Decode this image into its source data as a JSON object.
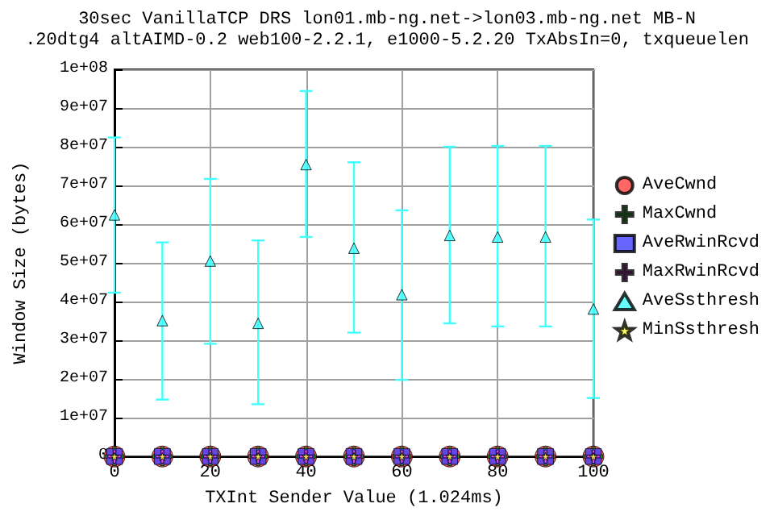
{
  "chart_data": {
    "type": "scatter",
    "title": "30sec VanillaTCP DRS lon01.mb-ng.net->lon03.mb-ng.net MB-N",
    "subtitle": ".20dtg4 altAIMD-0.2 web100-2.2.1, e1000-5.2.20 TxAbsIn=0, txqueuelen",
    "xlabel": "TXInt Sender Value (1.024ms)",
    "ylabel": "Window Size (bytes)",
    "x": [
      0,
      10,
      20,
      30,
      40,
      50,
      60,
      70,
      80,
      90,
      100
    ],
    "series": [
      {
        "name": "AveCwnd",
        "color": "#ff4040",
        "marker": "circle",
        "values": [
          0,
          0,
          0,
          0,
          0,
          0,
          0,
          0,
          0,
          0,
          0
        ]
      },
      {
        "name": "MaxCwnd",
        "color": "#40ff40",
        "marker": "cross",
        "values": [
          0,
          0,
          0,
          0,
          0,
          0,
          0,
          0,
          0,
          0,
          0
        ]
      },
      {
        "name": "AveRwinRcvd",
        "color": "#4040ff",
        "marker": "square",
        "values": [
          0,
          0,
          0,
          0,
          0,
          0,
          0,
          0,
          0,
          0,
          0
        ]
      },
      {
        "name": "MaxRwinRcvd",
        "color": "#ff40ff",
        "marker": "cross",
        "values": [
          0,
          0,
          0,
          0,
          0,
          0,
          0,
          0,
          0,
          0,
          0
        ]
      },
      {
        "name": "AveSsthresh",
        "color": "#40ffff",
        "marker": "triangle",
        "values": [
          62400000,
          35100000,
          50500000,
          34400000,
          75400000,
          53800000,
          41800000,
          57100000,
          56700000,
          56700000,
          38100000
        ],
        "errors": [
          [
            42300000,
            82400000
          ],
          [
            14700000,
            55300000
          ],
          [
            29100000,
            71700000
          ],
          [
            13500000,
            55800000
          ],
          [
            56700000,
            94400000
          ],
          [
            32000000,
            76000000
          ],
          [
            19800000,
            63600000
          ],
          [
            34400000,
            80000000
          ],
          [
            33600000,
            80200000
          ],
          [
            33600000,
            80200000
          ],
          [
            15100000,
            61200000
          ]
        ]
      },
      {
        "name": "MinSsthresh",
        "color": "#ffff40",
        "marker": "star",
        "values": [
          0,
          0,
          0,
          0,
          0,
          0,
          0,
          0,
          0,
          0,
          0
        ]
      }
    ],
    "xlim": [
      0,
      100
    ],
    "xticks": [
      0,
      20,
      40,
      60,
      80,
      100
    ],
    "ylim": [
      0,
      100000000
    ],
    "yticks": [
      {
        "value": 0,
        "label": "0"
      },
      {
        "value": 10000000,
        "label": "1e+07"
      },
      {
        "value": 20000000,
        "label": "2e+07"
      },
      {
        "value": 30000000,
        "label": "3e+07"
      },
      {
        "value": 40000000,
        "label": "4e+07"
      },
      {
        "value": 50000000,
        "label": "5e+07"
      },
      {
        "value": 60000000,
        "label": "6e+07"
      },
      {
        "value": 70000000,
        "label": "7e+07"
      },
      {
        "value": 80000000,
        "label": "8e+07"
      },
      {
        "value": 90000000,
        "label": "9e+07"
      },
      {
        "value": 100000000,
        "label": "1e+08"
      }
    ],
    "grid": true,
    "legend": "right"
  }
}
